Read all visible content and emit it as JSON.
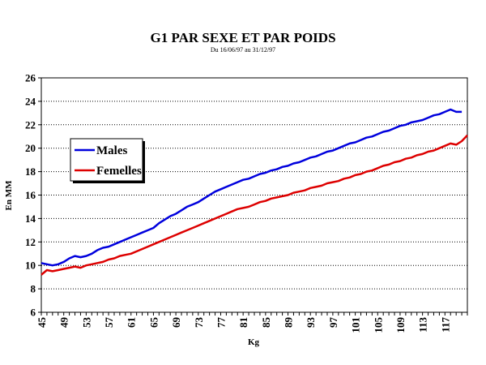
{
  "chart_data": {
    "type": "line",
    "title": "G1 PAR SEXE ET PAR POIDS",
    "subtitle": "Du 16/06/97 au 31/12/97",
    "xlabel": "Kg",
    "ylabel": "En MM",
    "xlim": [
      45,
      121
    ],
    "ylim": [
      6,
      26
    ],
    "yticks": [
      6,
      8,
      10,
      12,
      14,
      16,
      18,
      20,
      22,
      24,
      26
    ],
    "xticks": [
      45,
      49,
      53,
      57,
      61,
      65,
      69,
      73,
      77,
      81,
      85,
      89,
      93,
      97,
      101,
      105,
      109,
      113,
      117
    ],
    "grid": true,
    "legend": "left",
    "series": [
      {
        "name": "Males",
        "color": "#0000dd",
        "x": [
          45,
          46,
          47,
          48,
          49,
          50,
          51,
          52,
          53,
          54,
          55,
          56,
          57,
          58,
          59,
          60,
          61,
          62,
          63,
          64,
          65,
          66,
          67,
          68,
          69,
          70,
          71,
          72,
          73,
          74,
          75,
          76,
          77,
          78,
          79,
          80,
          81,
          82,
          83,
          84,
          85,
          86,
          87,
          88,
          89,
          90,
          91,
          92,
          93,
          94,
          95,
          96,
          97,
          98,
          99,
          100,
          101,
          102,
          103,
          104,
          105,
          106,
          107,
          108,
          109,
          110,
          111,
          112,
          113,
          114,
          115,
          116,
          117,
          118,
          119,
          120
        ],
        "y": [
          10.2,
          10.1,
          10.0,
          10.1,
          10.3,
          10.6,
          10.8,
          10.7,
          10.8,
          11.0,
          11.3,
          11.5,
          11.6,
          11.8,
          12.0,
          12.2,
          12.4,
          12.6,
          12.8,
          13.0,
          13.2,
          13.6,
          13.9,
          14.2,
          14.4,
          14.7,
          15.0,
          15.2,
          15.4,
          15.7,
          16.0,
          16.3,
          16.5,
          16.7,
          16.9,
          17.1,
          17.3,
          17.4,
          17.6,
          17.8,
          17.9,
          18.1,
          18.2,
          18.4,
          18.5,
          18.7,
          18.8,
          19.0,
          19.2,
          19.3,
          19.5,
          19.7,
          19.8,
          20.0,
          20.2,
          20.4,
          20.5,
          20.7,
          20.9,
          21.0,
          21.2,
          21.4,
          21.5,
          21.7,
          21.9,
          22.0,
          22.2,
          22.3,
          22.4,
          22.6,
          22.8,
          22.9,
          23.1,
          23.3,
          23.1,
          23.1
        ]
      },
      {
        "name": "Femelles",
        "color": "#dd0000",
        "x": [
          45,
          46,
          47,
          48,
          49,
          50,
          51,
          52,
          53,
          54,
          55,
          56,
          57,
          58,
          59,
          60,
          61,
          62,
          63,
          64,
          65,
          66,
          67,
          68,
          69,
          70,
          71,
          72,
          73,
          74,
          75,
          76,
          77,
          78,
          79,
          80,
          81,
          82,
          83,
          84,
          85,
          86,
          87,
          88,
          89,
          90,
          91,
          92,
          93,
          94,
          95,
          96,
          97,
          98,
          99,
          100,
          101,
          102,
          103,
          104,
          105,
          106,
          107,
          108,
          109,
          110,
          111,
          112,
          113,
          114,
          115,
          116,
          117,
          118,
          119,
          120,
          121
        ],
        "y": [
          9.2,
          9.6,
          9.5,
          9.6,
          9.7,
          9.8,
          9.9,
          9.8,
          10.0,
          10.1,
          10.2,
          10.3,
          10.5,
          10.6,
          10.8,
          10.9,
          11.0,
          11.2,
          11.4,
          11.6,
          11.8,
          12.0,
          12.2,
          12.4,
          12.6,
          12.8,
          13.0,
          13.2,
          13.4,
          13.6,
          13.8,
          14.0,
          14.2,
          14.4,
          14.6,
          14.8,
          14.9,
          15.0,
          15.2,
          15.4,
          15.5,
          15.7,
          15.8,
          15.9,
          16.0,
          16.2,
          16.3,
          16.4,
          16.6,
          16.7,
          16.8,
          17.0,
          17.1,
          17.2,
          17.4,
          17.5,
          17.7,
          17.8,
          18.0,
          18.1,
          18.3,
          18.5,
          18.6,
          18.8,
          18.9,
          19.1,
          19.2,
          19.4,
          19.5,
          19.7,
          19.8,
          20.0,
          20.2,
          20.4,
          20.3,
          20.6,
          21.1
        ]
      }
    ]
  }
}
